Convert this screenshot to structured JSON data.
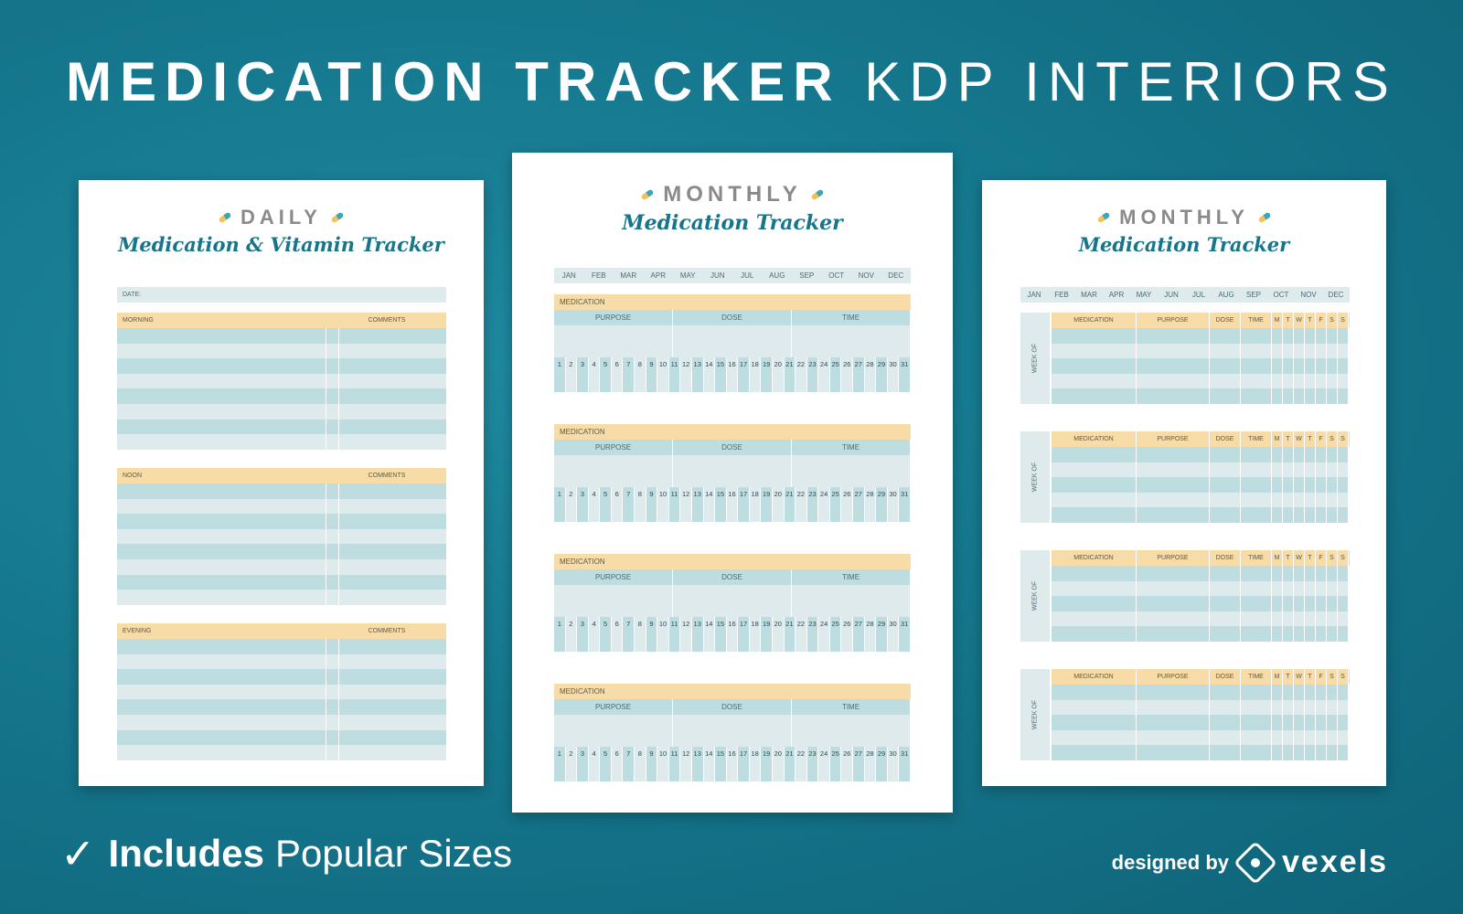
{
  "headline": {
    "bold": "MEDICATION TRACKER",
    "light": "KDP INTERIORS"
  },
  "daily_page": {
    "kicker": "DAILY",
    "script_title": "Medication & Vitamin Tracker",
    "date_label": "DATE:",
    "sections": [
      {
        "label": "MORNING",
        "comments": "COMMENTS"
      },
      {
        "label": "NOON",
        "comments": "COMMENTS"
      },
      {
        "label": "EVENING",
        "comments": "COMMENTS"
      }
    ]
  },
  "monthly_page_a": {
    "kicker": "MONTHLY",
    "script_title": "Medication Tracker",
    "months": [
      "JAN",
      "FEB",
      "MAR",
      "APR",
      "MAY",
      "JUN",
      "JUL",
      "AUG",
      "SEP",
      "OCT",
      "NOV",
      "DEC"
    ],
    "block_label": "MEDICATION",
    "sub_columns": [
      "PURPOSE",
      "DOSE",
      "TIME"
    ],
    "days": [
      "1",
      "2",
      "3",
      "4",
      "5",
      "6",
      "7",
      "8",
      "9",
      "10",
      "11",
      "12",
      "13",
      "14",
      "15",
      "16",
      "17",
      "18",
      "19",
      "20",
      "21",
      "22",
      "23",
      "24",
      "25",
      "26",
      "27",
      "28",
      "29",
      "30",
      "31"
    ]
  },
  "monthly_page_b": {
    "kicker": "MONTHLY",
    "script_title": "Medication Tracker",
    "months": [
      "JAN",
      "FEB",
      "MAR",
      "APR",
      "MAY",
      "JUN",
      "JUL",
      "AUG",
      "SEP",
      "OCT",
      "NOV",
      "DEC"
    ],
    "week_label": "WEEK OF",
    "columns": [
      "MEDICATION",
      "PURPOSE",
      "DOSE",
      "TIME"
    ],
    "weekdays": [
      "M",
      "T",
      "W",
      "T",
      "F",
      "S",
      "S"
    ]
  },
  "footer": {
    "includes_bold": "Includes",
    "includes_rest": "Popular Sizes",
    "designed_by": "designed by",
    "brand": "vexels"
  },
  "colors": {
    "background": "#15778d",
    "accent_yellow": "#f8dca7",
    "accent_teal": "#bddde1",
    "light_row": "#dfeaed",
    "script_text": "#17758a"
  },
  "icons": {
    "check": "check-icon",
    "brand_mark": "vexels-logo-icon",
    "pill": "pill-icon"
  }
}
